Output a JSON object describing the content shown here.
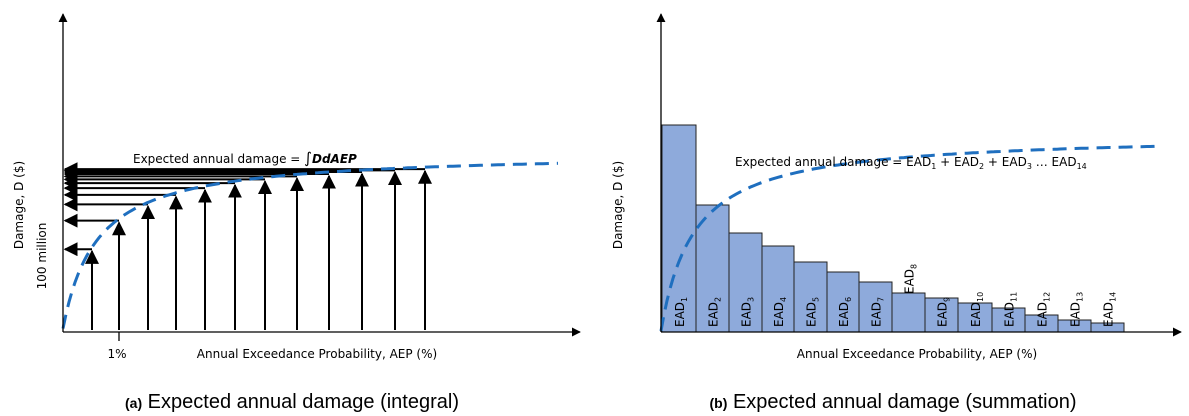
{
  "panel_a": {
    "ylabel": "Damage, D ($)",
    "xlabel": "Annual Exceedance Probability, AEP (%)",
    "tick_y": "100 million",
    "tick_x": "1%",
    "equation_prefix": "Expected annual damage = ",
    "equation_integral": "∫",
    "equation_body": "DdAEP",
    "caption_prefix": "(a)",
    "caption_text": " Expected annual damage (integral)"
  },
  "panel_b": {
    "ylabel": "Damage, D ($)",
    "xlabel": "Annual Exceedance Probability, AEP (%)",
    "equation_prefix": "Expected annual damage = EAD",
    "eq_sub1": "1",
    "eq_mid1": " + EAD",
    "eq_sub2": "2",
    "eq_mid2": " + EAD",
    "eq_sub3": "3",
    "eq_mid3": " … EAD",
    "eq_sub4": "14",
    "bar_prefix": "EAD",
    "bar_subs": [
      "1",
      "2",
      "3",
      "4",
      "5",
      "6",
      "7",
      "8",
      "9",
      "10",
      "11",
      "12",
      "13",
      "14"
    ],
    "caption_prefix": "(b)",
    "caption_text": " Expected annual damage (summation)"
  },
  "colors": {
    "curve": "#1f6fbf",
    "bar_fill": "#8eaadb",
    "bar_stroke": "#222222",
    "axis": "#000000"
  }
}
